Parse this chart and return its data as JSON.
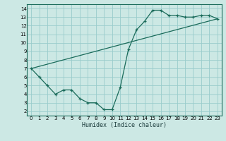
{
  "xlabel": "Humidex (Indice chaleur)",
  "bg_color": "#cce8e4",
  "line_color": "#1a6b5a",
  "grid_color": "#99cccc",
  "xlim": [
    -0.5,
    23.5
  ],
  "ylim": [
    1.5,
    14.5
  ],
  "xticks": [
    0,
    1,
    2,
    3,
    4,
    5,
    6,
    7,
    8,
    9,
    10,
    11,
    12,
    13,
    14,
    15,
    16,
    17,
    18,
    19,
    20,
    21,
    22,
    23
  ],
  "yticks": [
    2,
    3,
    4,
    5,
    6,
    7,
    8,
    9,
    10,
    11,
    12,
    13,
    14
  ],
  "curve1_x": [
    0,
    1,
    2,
    3,
    4,
    5,
    6,
    7,
    8,
    9,
    10,
    11,
    12,
    13,
    14,
    15,
    16,
    17,
    18,
    19,
    20,
    21,
    22,
    23
  ],
  "curve1_y": [
    7.0,
    6.0,
    5.0,
    4.0,
    4.5,
    4.5,
    3.5,
    3.0,
    3.0,
    2.2,
    2.2,
    4.8,
    9.2,
    11.5,
    12.5,
    13.8,
    13.8,
    13.2,
    13.2,
    13.0,
    13.0,
    13.2,
    13.2,
    12.8
  ],
  "curve2_x": [
    0,
    23
  ],
  "curve2_y": [
    7.0,
    12.8
  ],
  "tick_fontsize": 5.0,
  "xlabel_fontsize": 6.0,
  "marker_size": 3.5,
  "line_width": 0.9
}
